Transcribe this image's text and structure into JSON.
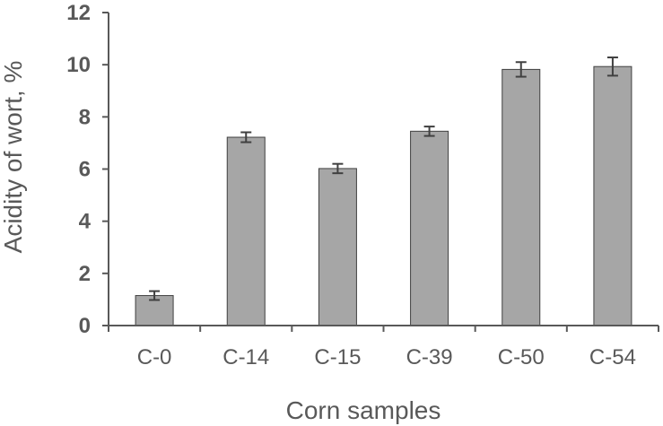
{
  "chart_data": {
    "type": "bar",
    "title": "",
    "xlabel": "Corn samples",
    "ylabel": "Acidity of wort, %",
    "categories": [
      "C-0",
      "C-14",
      "C-15",
      "C-39",
      "C-50",
      "C-54"
    ],
    "values": [
      1.15,
      7.22,
      6.02,
      7.45,
      9.82,
      9.93
    ],
    "errors": [
      0.17,
      0.19,
      0.18,
      0.18,
      0.28,
      0.35
    ],
    "ylim": [
      0,
      12
    ],
    "yticks": [
      "0",
      "2",
      "4",
      "6",
      "8",
      "10",
      "12"
    ],
    "grid": false,
    "legend": "none",
    "colors": {
      "bar_fill": "#a6a6a6",
      "bar_stroke": "#404040",
      "axis": "#595959",
      "error_bar": "#404040",
      "text": "#595959"
    }
  }
}
